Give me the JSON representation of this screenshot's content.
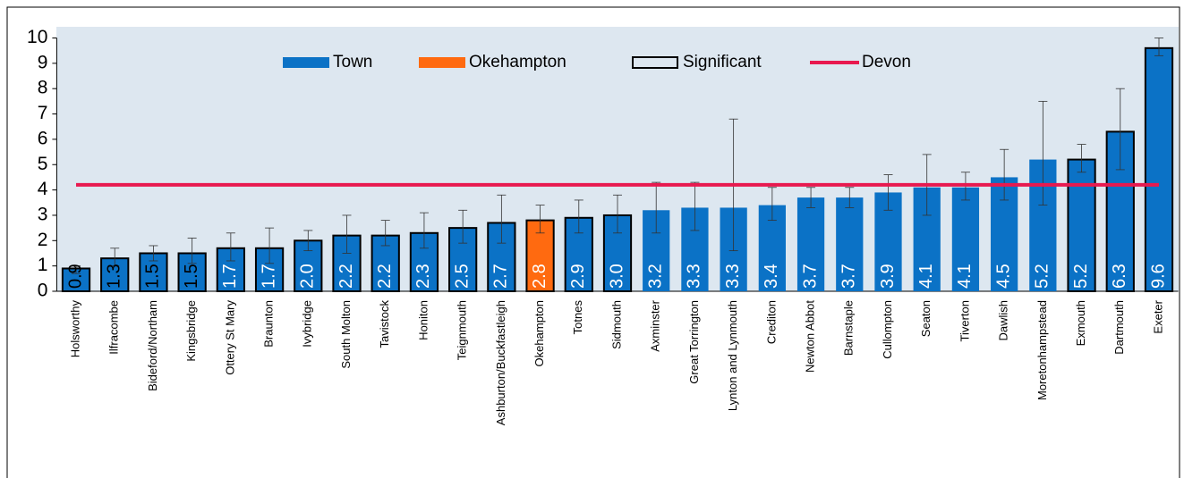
{
  "chart_data": {
    "type": "bar",
    "categories": [
      "Holsworthy",
      "Ilfracombe",
      "Bideford/Northam",
      "Kingsbridge",
      "Ottery St Mary",
      "Braunton",
      "Ivybridge",
      "South Molton",
      "Tavistock",
      "Honiton",
      "Teignmouth",
      "Ashburton/Buckfastleigh",
      "Okehampton",
      "Totnes",
      "Sidmouth",
      "Axminster",
      "Great Torrington",
      "Lynton and Lynmouth",
      "Crediton",
      "Newton Abbot",
      "Barnstaple",
      "Cullompton",
      "Seaton",
      "Tiverton",
      "Dawlish",
      "Moretonhampstead",
      "Exmouth",
      "Dartmouth",
      "Exeter"
    ],
    "values": [
      0.9,
      1.3,
      1.5,
      1.5,
      1.7,
      1.7,
      2.0,
      2.2,
      2.2,
      2.3,
      2.5,
      2.7,
      2.8,
      2.9,
      3.0,
      3.2,
      3.3,
      3.3,
      3.4,
      3.7,
      3.7,
      3.9,
      4.1,
      4.1,
      4.5,
      5.2,
      5.2,
      6.3,
      9.6
    ],
    "value_labels": [
      "0.9",
      "1.3",
      "1.5",
      "1.5",
      "1.7",
      "1.7",
      "2.0",
      "2.2",
      "2.2",
      "2.3",
      "2.5",
      "2.7",
      "2.8",
      "2.9",
      "3.0",
      "3.2",
      "3.3",
      "3.3",
      "3.4",
      "3.7",
      "3.7",
      "3.9",
      "4.1",
      "4.1",
      "4.5",
      "5.2",
      "5.2",
      "6.3",
      "9.6"
    ],
    "lower": [
      0.7,
      1.0,
      1.2,
      1.1,
      1.2,
      1.1,
      1.6,
      1.5,
      1.8,
      1.7,
      1.9,
      1.9,
      2.3,
      2.3,
      2.3,
      2.3,
      2.4,
      1.6,
      2.8,
      3.3,
      3.3,
      3.2,
      3.0,
      3.6,
      3.6,
      3.4,
      4.7,
      4.8,
      9.3
    ],
    "upper": [
      1.0,
      1.7,
      1.8,
      2.1,
      2.3,
      2.5,
      2.4,
      3.0,
      2.8,
      3.1,
      3.2,
      3.8,
      3.4,
      3.6,
      3.8,
      4.3,
      4.3,
      6.8,
      4.1,
      4.1,
      4.1,
      4.6,
      5.4,
      4.7,
      5.6,
      7.5,
      5.8,
      8.0,
      10.0
    ],
    "colors": [
      "#0b72c6",
      "#0b72c6",
      "#0b72c6",
      "#0b72c6",
      "#0b72c6",
      "#0b72c6",
      "#0b72c6",
      "#0b72c6",
      "#0b72c6",
      "#0b72c6",
      "#0b72c6",
      "#0b72c6",
      "#ff6a10",
      "#0b72c6",
      "#0b72c6",
      "#0b72c6",
      "#0b72c6",
      "#0b72c6",
      "#0b72c6",
      "#0b72c6",
      "#0b72c6",
      "#0b72c6",
      "#0b72c6",
      "#0b72c6",
      "#0b72c6",
      "#0b72c6",
      "#0b72c6",
      "#0b72c6",
      "#0b72c6"
    ],
    "significant": [
      true,
      true,
      true,
      true,
      true,
      true,
      true,
      true,
      true,
      true,
      true,
      true,
      true,
      true,
      true,
      false,
      false,
      false,
      false,
      false,
      false,
      false,
      false,
      false,
      false,
      false,
      true,
      true,
      true
    ],
    "legend_entries": [
      {
        "name": "Town",
        "color": "#0b72c6"
      },
      {
        "name": "Okehampton",
        "color": "#ff6a10"
      },
      {
        "name": "Significant",
        "color": "#000000"
      }
    ],
    "reference_line": {
      "name": "Devon",
      "value": 4.2,
      "color": "#e8194f"
    },
    "ylim": [
      0,
      10
    ],
    "yticks": [
      0,
      1,
      2,
      3,
      4,
      5,
      6,
      7,
      8,
      9,
      10
    ]
  }
}
